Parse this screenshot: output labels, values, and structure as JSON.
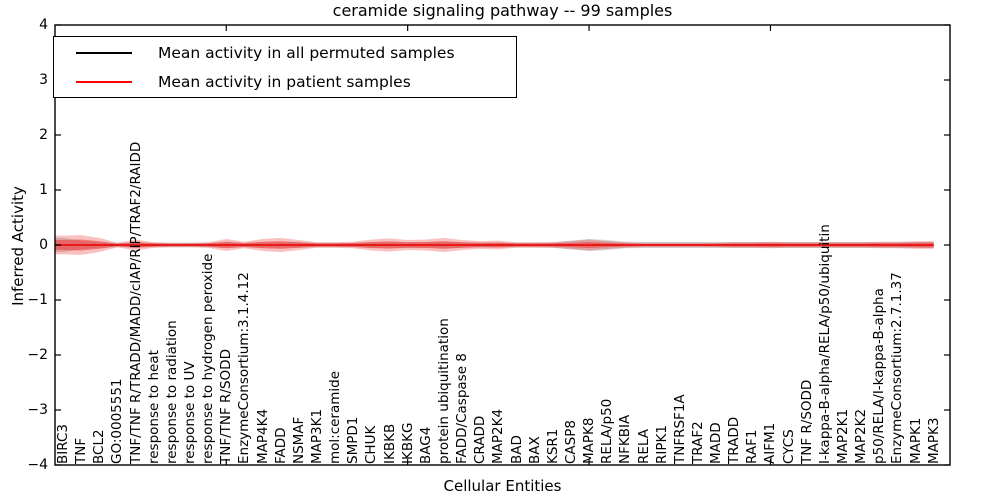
{
  "accent_colors": {
    "patient_line": "#ee1111",
    "permuted_line": "#000000",
    "patient_band": "#ee3333",
    "permuted_band": "#999999",
    "frame": "#000000"
  },
  "legend": {
    "items": [
      {
        "label": "Mean activity in all permuted samples",
        "color": "#000000",
        "style": "solid"
      },
      {
        "label": "Mean activity in patient samples",
        "color": "#ff0000",
        "style": "solid"
      }
    ],
    "position": "upper left"
  },
  "chart_data": {
    "type": "line",
    "subtype": "mean-lines-with-violin-std-bands",
    "title": "ceramide signaling pathway -- 99 samples",
    "xlabel": "Cellular Entities",
    "ylabel": "Inferred Activity",
    "ylim": [
      -4,
      4
    ],
    "grid": false,
    "yticks": [
      {
        "label": "4",
        "value": 4
      },
      {
        "label": "3",
        "value": 3
      },
      {
        "label": "2",
        "value": 2
      },
      {
        "label": "1",
        "value": 1
      },
      {
        "label": "0",
        "value": 0
      },
      {
        "label": "−1",
        "value": -1
      },
      {
        "label": "−2",
        "value": -2
      },
      {
        "label": "−3",
        "value": -3
      },
      {
        "label": "−4",
        "value": -4
      }
    ],
    "x_major_tick_positions": [
      10,
      20,
      30,
      40
    ],
    "categories": [
      "BIRC3",
      "TNF",
      "BCL2",
      "GO:0005551",
      "TNF/TNF R/TRADD/MADD/cIAP/RIP/TRAF2/RAIDD",
      "response to heat",
      "response to radiation",
      "response to UV",
      "response to hydrogen peroxide",
      "TNF/TNF R/SODD",
      "EnzymeConsortium:3.1.4.12",
      "MAP4K4",
      "FADD",
      "NSMAF",
      "MAP3K1",
      "mol:ceramide",
      "SMPD1",
      "CHUK",
      "IKBKB",
      "IKBKG",
      "BAG4",
      "protein ubiquitination",
      "FADD/Caspase 8",
      "CRADD",
      "MAP2K4",
      "BAD",
      "BAX",
      "KSR1",
      "CASP8",
      "MAPK8",
      "RELA/p50",
      "NFKBIA",
      "RELA",
      "RIPK1",
      "TNFRSF1A",
      "TRAF2",
      "MADD",
      "TRADD",
      "RAF1",
      "AIFM1",
      "CYCS",
      "TNF R/SODD",
      "I-kappa-B-alpha/RELA/p50/ubiquitin",
      "MAP2K1",
      "MAP2K2",
      "p50/RELA/I-kappa-B-alpha",
      "EnzymeConsortium:2.7.1.37",
      "MAPK1",
      "MAPK3"
    ],
    "series": [
      {
        "name": "Mean activity in all permuted samples",
        "color": "#000000",
        "style": "dashed",
        "values": [
          0,
          0,
          0,
          0,
          0,
          0,
          0,
          0,
          0,
          0,
          0,
          0,
          0,
          0,
          0,
          0,
          0,
          0,
          0,
          0,
          0,
          0,
          0,
          0,
          0,
          0,
          0,
          0,
          0,
          0,
          0,
          0,
          0,
          0,
          0,
          0,
          0,
          0,
          0,
          0,
          0,
          0,
          0,
          0,
          0,
          0,
          0,
          0,
          0
        ]
      },
      {
        "name": "Mean activity in patient samples",
        "color": "#ff0000",
        "style": "solid",
        "values": [
          0,
          0,
          0,
          0,
          0,
          0,
          0,
          0,
          0,
          0,
          0,
          0,
          0,
          0,
          0,
          0,
          0,
          0,
          0,
          0,
          0,
          0,
          0,
          0,
          0,
          0,
          0,
          0,
          0,
          0,
          0,
          0,
          0,
          0,
          0,
          0,
          0,
          0,
          0,
          0,
          0,
          0,
          0,
          0,
          0,
          0,
          0,
          0,
          0
        ]
      }
    ],
    "bands": [
      {
        "name": "permuted-std-band",
        "color": "#999999",
        "opacity": 0.42,
        "half_widths": [
          0.13,
          0.08,
          0.05,
          0.04,
          0.04,
          0.04,
          0.04,
          0.04,
          0.04,
          0.05,
          0.04,
          0.05,
          0.05,
          0.05,
          0.04,
          0.04,
          0.04,
          0.05,
          0.05,
          0.05,
          0.05,
          0.055,
          0.05,
          0.04,
          0.04,
          0.04,
          0.04,
          0.05,
          0.08,
          0.11,
          0.09,
          0.06,
          0.055,
          0.055,
          0.055,
          0.055,
          0.055,
          0.055,
          0.055,
          0.055,
          0.055,
          0.055,
          0.055,
          0.055,
          0.055,
          0.055,
          0.055,
          0.055,
          0.055
        ]
      },
      {
        "name": "patient-std-outer-band",
        "color": "#ee3333",
        "opacity": 0.3,
        "half_widths": [
          0.17,
          0.18,
          0.13,
          0.04,
          0.1,
          0.05,
          0.04,
          0.04,
          0.05,
          0.11,
          0.06,
          0.11,
          0.13,
          0.09,
          0.05,
          0.05,
          0.06,
          0.1,
          0.12,
          0.09,
          0.1,
          0.13,
          0.09,
          0.07,
          0.08,
          0.05,
          0.05,
          0.05,
          0.07,
          0.1,
          0.07,
          0.05,
          0.04,
          0.04,
          0.04,
          0.04,
          0.04,
          0.05,
          0.05,
          0.06,
          0.05,
          0.05,
          0.05,
          0.05,
          0.05,
          0.06,
          0.06,
          0.07,
          0.07
        ]
      },
      {
        "name": "patient-std-inner-band",
        "color": "#ee2222",
        "opacity": 0.45,
        "half_widths": [
          0.09,
          0.1,
          0.07,
          0.02,
          0.055,
          0.03,
          0.02,
          0.02,
          0.03,
          0.06,
          0.035,
          0.06,
          0.07,
          0.05,
          0.03,
          0.03,
          0.035,
          0.055,
          0.065,
          0.05,
          0.055,
          0.07,
          0.05,
          0.04,
          0.045,
          0.03,
          0.03,
          0.03,
          0.04,
          0.055,
          0.04,
          0.03,
          0.02,
          0.02,
          0.02,
          0.02,
          0.025,
          0.03,
          0.03,
          0.035,
          0.03,
          0.03,
          0.03,
          0.03,
          0.03,
          0.035,
          0.035,
          0.04,
          0.045
        ]
      }
    ]
  }
}
